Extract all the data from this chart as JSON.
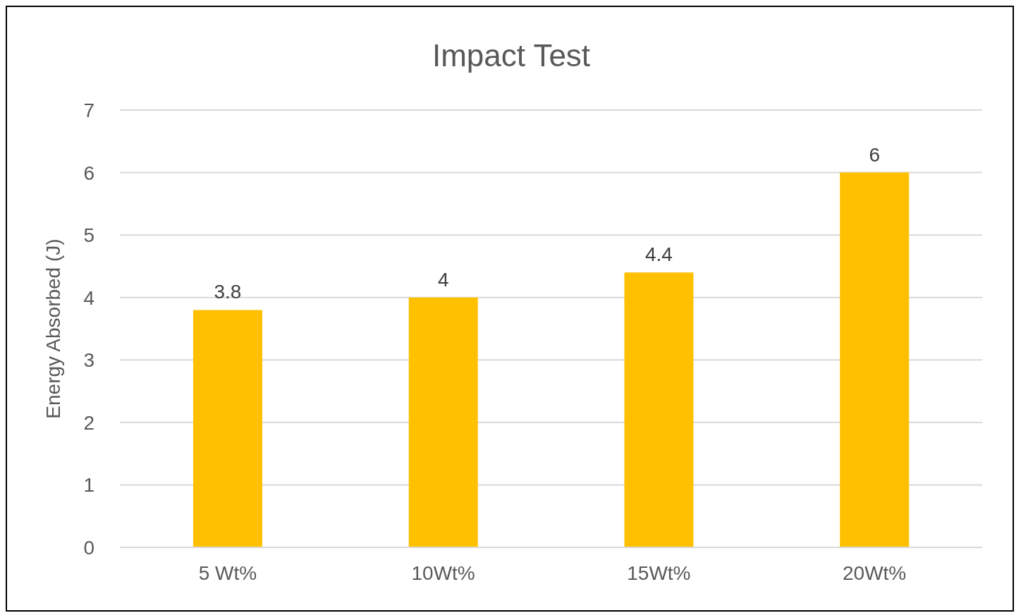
{
  "chart_data": {
    "type": "bar",
    "title": "Impact Test",
    "ylabel": "Energy Absorbed (J)",
    "categories": [
      "5 Wt%",
      "10Wt%",
      "15Wt%",
      "20Wt%"
    ],
    "values": [
      3.8,
      4,
      4.4,
      6
    ],
    "color": "#ffc000",
    "ylim": [
      0,
      7
    ],
    "yticks": [
      0,
      1,
      2,
      3,
      4,
      5,
      6,
      7
    ],
    "grid": "y",
    "data_labels": true
  }
}
